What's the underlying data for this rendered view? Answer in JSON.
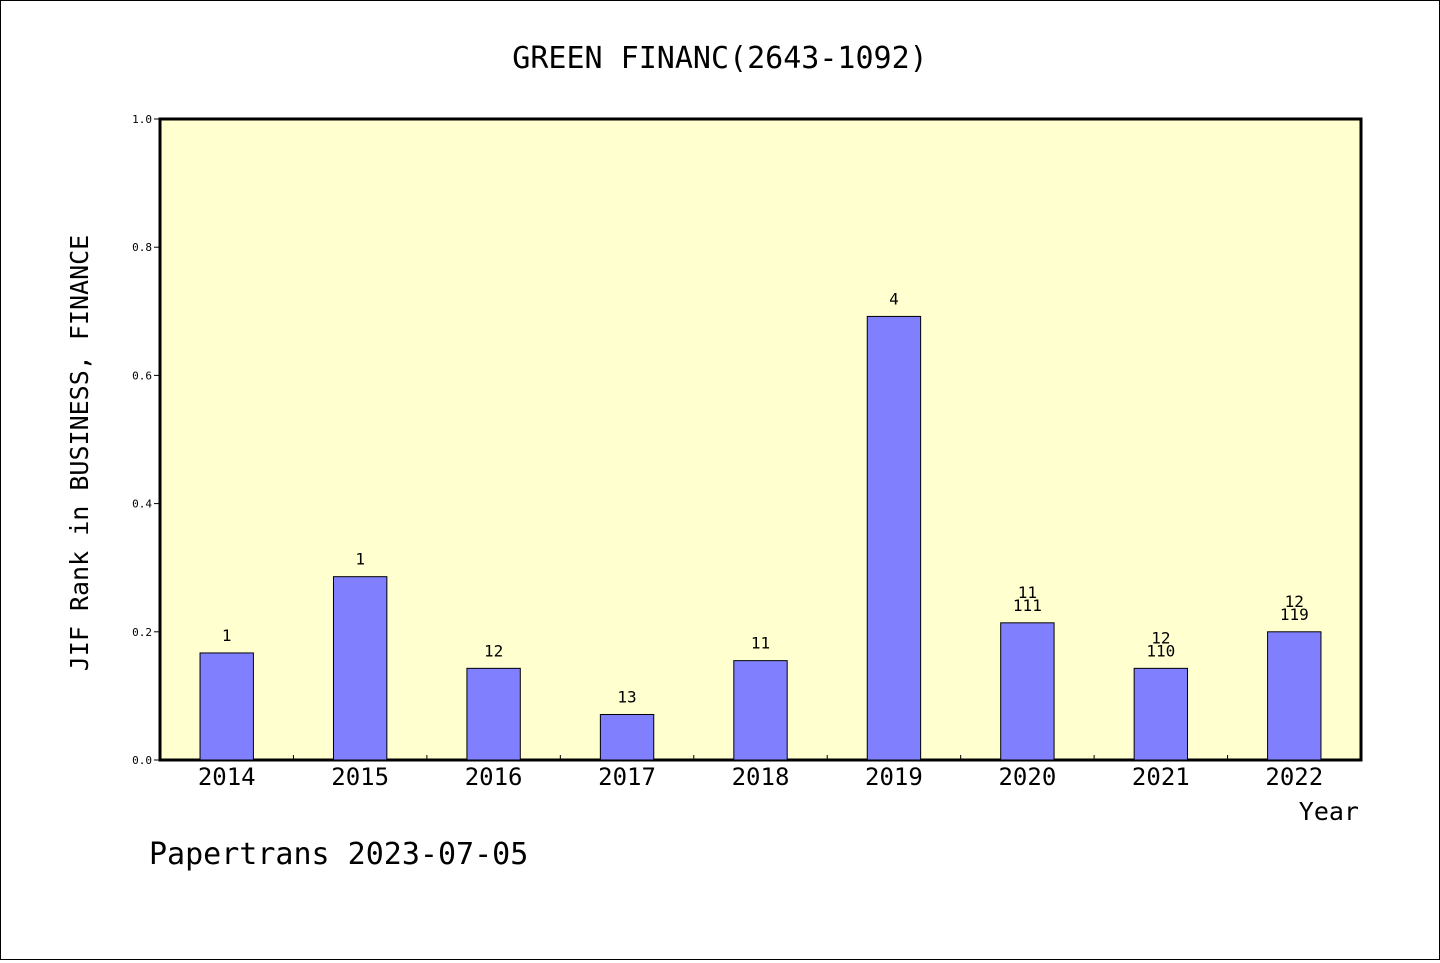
{
  "chart_data": {
    "type": "bar",
    "title": "GREEN FINANC(2643-1092)",
    "xlabel": "Year",
    "ylabel": "JIF Rank in BUSINESS, FINANCE",
    "categories": [
      "2014",
      "2015",
      "2016",
      "2017",
      "2018",
      "2019",
      "2020",
      "2021",
      "2022"
    ],
    "values": [
      0.167,
      0.286,
      0.143,
      0.071,
      0.155,
      0.692,
      0.214,
      0.143,
      0.2
    ],
    "bar_labels": [
      [
        "1"
      ],
      [
        "1"
      ],
      [
        "12"
      ],
      [
        "13"
      ],
      [
        "11"
      ],
      [
        "4"
      ],
      [
        "11",
        "111"
      ],
      [
        "12",
        "110"
      ],
      [
        "12",
        "119"
      ]
    ],
    "ylim": [
      0,
      1.0
    ],
    "yticks": [
      "0.0",
      "0.2",
      "0.4",
      "0.6",
      "0.8",
      "1.0"
    ],
    "grid": false,
    "legend": "none",
    "colors": {
      "plot_background": "#ffffd0",
      "bar_fill": "#8080ff",
      "bar_stroke": "#000000"
    }
  },
  "footer": {
    "text": "Papertrans 2023-07-05"
  }
}
